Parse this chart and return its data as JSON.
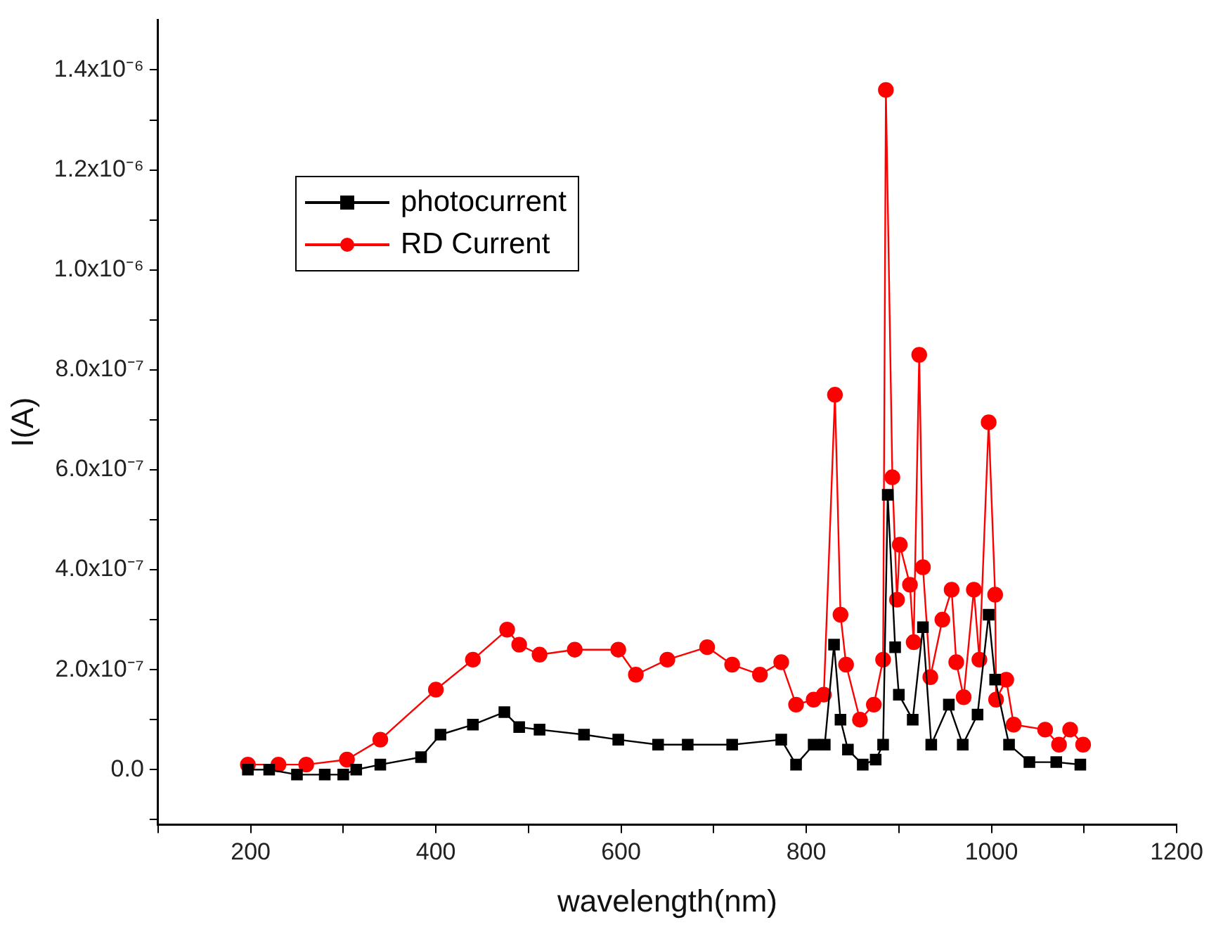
{
  "chart_data": {
    "type": "line",
    "xlabel": "wavelength(nm)",
    "ylabel": "I(A)",
    "legend": "top left",
    "grid": false,
    "line_style": "solid",
    "xlim": [
      100,
      1200
    ],
    "ylim": [
      -1.1e-07,
      1.5e-06
    ],
    "xticks": [
      {
        "value": 100,
        "label": null
      },
      200,
      {
        "value": 300,
        "label": null
      },
      400,
      {
        "value": 500,
        "label": null
      },
      600,
      {
        "value": 700,
        "label": null
      },
      800,
      {
        "value": 900,
        "label": null
      },
      1000,
      {
        "value": 1100,
        "label": null
      },
      1200
    ],
    "yticks": [
      {
        "value": -1e-07,
        "label": null
      },
      {
        "value": 0,
        "label": "0.0"
      },
      {
        "value": 1e-07,
        "label": null
      },
      {
        "value": 2e-07,
        "label": "2.0x10⁻⁷"
      },
      {
        "value": 3e-07,
        "label": null
      },
      {
        "value": 4e-07,
        "label": "4.0x10⁻⁷"
      },
      {
        "value": 5e-07,
        "label": null
      },
      {
        "value": 6e-07,
        "label": "6.0x10⁻⁷"
      },
      {
        "value": 7e-07,
        "label": null
      },
      {
        "value": 8e-07,
        "label": "8.0x10⁻⁷"
      },
      {
        "value": 9e-07,
        "label": null
      },
      {
        "value": 1e-06,
        "label": "1.0x10⁻⁶"
      },
      {
        "value": 1.1e-06,
        "label": null
      },
      {
        "value": 1.2e-06,
        "label": "1.2x10⁻⁶"
      },
      {
        "value": 1.3e-06,
        "label": null
      },
      {
        "value": 1.4e-06,
        "label": "1.4x10⁻⁶"
      }
    ],
    "series": [
      {
        "name": "photocurrent",
        "color": "#000000",
        "marker": "square",
        "x": [
          197,
          220,
          250,
          280,
          300,
          314,
          340,
          384,
          405,
          440,
          474,
          490,
          512,
          560,
          597,
          640,
          672,
          720,
          773,
          789,
          808,
          820,
          830,
          837,
          845,
          861,
          875,
          883,
          888,
          896,
          900,
          915,
          926,
          935,
          954,
          969,
          985,
          997,
          1004,
          1019,
          1041,
          1070,
          1096
        ],
        "values": [
          0,
          0,
          -1e-08,
          -1e-08,
          -1e-08,
          0,
          1e-08,
          2.5e-08,
          7e-08,
          9e-08,
          1.15e-07,
          8.5e-08,
          8e-08,
          7e-08,
          6e-08,
          5e-08,
          5e-08,
          5e-08,
          6e-08,
          1e-08,
          5e-08,
          5e-08,
          2.5e-07,
          1e-07,
          4e-08,
          1e-08,
          2e-08,
          5e-08,
          5.5e-07,
          2.45e-07,
          1.5e-07,
          1e-07,
          2.85e-07,
          5e-08,
          1.3e-07,
          5e-08,
          1.1e-07,
          3.1e-07,
          1.8e-07,
          5e-08,
          1.5e-08,
          1.5e-08,
          1e-08
        ]
      },
      {
        "name": "RD Current",
        "color": "#ff0000",
        "marker": "circle",
        "x": [
          197,
          230,
          260,
          304,
          340,
          400,
          440,
          477,
          490,
          512,
          550,
          597,
          616,
          650,
          693,
          720,
          750,
          773,
          789,
          808,
          819,
          831,
          837,
          843,
          858,
          873,
          883,
          886,
          893,
          898,
          901,
          912,
          916,
          922,
          926,
          934,
          947,
          957,
          962,
          970,
          981,
          987,
          997,
          1004,
          1005,
          1016,
          1024,
          1058,
          1073,
          1085,
          1099
        ],
        "values": [
          1e-08,
          1e-08,
          1e-08,
          2e-08,
          6e-08,
          1.6e-07,
          2.2e-07,
          2.8e-07,
          2.5e-07,
          2.3e-07,
          2.4e-07,
          2.4e-07,
          1.9e-07,
          2.2e-07,
          2.45e-07,
          2.1e-07,
          1.9e-07,
          2.15e-07,
          1.3e-07,
          1.4e-07,
          1.5e-07,
          7.5e-07,
          3.1e-07,
          2.1e-07,
          1e-07,
          1.3e-07,
          2.2e-07,
          1.36e-06,
          5.85e-07,
          3.4e-07,
          4.5e-07,
          3.7e-07,
          2.55e-07,
          8.3e-07,
          4.05e-07,
          1.85e-07,
          3e-07,
          3.6e-07,
          2.15e-07,
          1.45e-07,
          3.6e-07,
          2.2e-07,
          6.95e-07,
          3.5e-07,
          1.4e-07,
          1.8e-07,
          9e-08,
          8e-08,
          5e-08,
          8e-08,
          5e-08
        ]
      }
    ]
  }
}
